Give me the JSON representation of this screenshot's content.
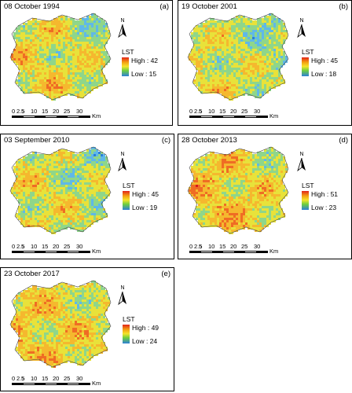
{
  "panels": [
    {
      "date": "08  October 1994",
      "letter": "(a)",
      "legend_title": "LST",
      "high": "High : 42",
      "low": "Low : 15",
      "scale_ticks": [
        "0",
        "2.5",
        "5",
        "10",
        "15",
        "20",
        "25",
        "30"
      ],
      "scale_unit": "Km",
      "north": "N",
      "warmth": 0.55
    },
    {
      "date": "19  October 2001",
      "letter": "(b)",
      "legend_title": "LST",
      "high": "High : 45",
      "low": "Low : 18",
      "scale_ticks": [
        "0",
        "2.5",
        "5",
        "10",
        "15",
        "20",
        "25",
        "30"
      ],
      "scale_unit": "Km",
      "north": "N",
      "warmth": 0.5
    },
    {
      "date": "03  September 2010",
      "letter": "(c)",
      "legend_title": "LST",
      "high": "High : 45",
      "low": "Low : 19",
      "scale_ticks": [
        "0",
        "2.5",
        "5",
        "10",
        "15",
        "20",
        "25",
        "30"
      ],
      "scale_unit": "Km",
      "north": "N",
      "warmth": 0.52
    },
    {
      "date": "28  October 2013",
      "letter": "(d)",
      "legend_title": "LST",
      "high": "High : 51",
      "low": "Low : 23",
      "scale_ticks": [
        "0",
        "2.5",
        "5",
        "10",
        "15",
        "20",
        "25",
        "30"
      ],
      "scale_unit": "Km",
      "north": "N",
      "warmth": 0.62
    },
    {
      "date": "23  October 2017",
      "letter": "(e)",
      "legend_title": "LST",
      "high": "High : 49",
      "low": "Low : 24",
      "scale_ticks": [
        "0",
        "2.5",
        "5",
        "10",
        "15",
        "20",
        "25",
        "30"
      ],
      "scale_unit": "Km",
      "north": "N",
      "warmth": 0.6
    }
  ],
  "colors": {
    "legend_ramp": [
      "#e2231a",
      "#f39c12",
      "#f5e42b",
      "#6fcf3e",
      "#2c7fd8"
    ]
  }
}
